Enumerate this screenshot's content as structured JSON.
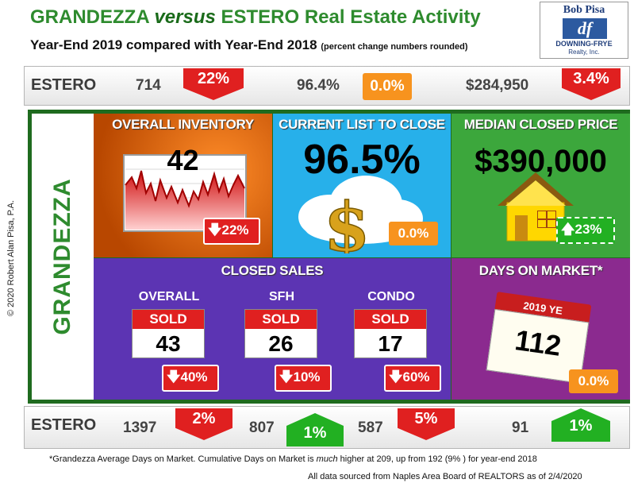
{
  "header": {
    "title_a": "GRANDEZZA",
    "title_vs": "versus",
    "title_b": "ESTERO Real Estate Activity",
    "subtitle": "Year-End 2019 compared with Year-End 2018",
    "subtitle_note": "(percent change numbers rounded)"
  },
  "logo": {
    "name": "Bob Pisa",
    "mark": "df",
    "firm": "DOWNING-FRYE",
    "suffix": "Realty, Inc."
  },
  "estero_top": {
    "label": "ESTERO",
    "inventory": "714",
    "inventory_change": "22%",
    "list_to_close": "96.4%",
    "list_to_close_change": "0.0%",
    "median_price": "$284,950",
    "median_price_change": "3.4%"
  },
  "side_label": "GRANDEZZA",
  "copyright": "© 2020 Robert Alan Pisa, P.A.",
  "tiles": {
    "inventory": {
      "heading": "OVERALL INVENTORY",
      "value": "42",
      "change": "22%",
      "direction": "down"
    },
    "list_to_close": {
      "heading": "CURRENT LIST TO CLOSE",
      "value": "96.5%",
      "change": "0.0%",
      "direction": "flat"
    },
    "median_price": {
      "heading": "MEDIAN CLOSED PRICE",
      "value": "$390,000",
      "change": "23%",
      "direction": "up"
    },
    "closed_sales": {
      "heading": "CLOSED SALES",
      "groups": [
        {
          "label": "OVERALL",
          "badge": "SOLD",
          "value": "43",
          "change": "40%",
          "direction": "down"
        },
        {
          "label": "SFH",
          "badge": "SOLD",
          "value": "26",
          "change": "10%",
          "direction": "down"
        },
        {
          "label": "CONDO",
          "badge": "SOLD",
          "value": "17",
          "change": "60%",
          "direction": "down"
        }
      ]
    },
    "days_on_market": {
      "heading": "DAYS ON MARKET*",
      "calendar_label": "2019 YE",
      "value": "112",
      "change": "0.0%",
      "direction": "flat"
    }
  },
  "estero_bottom": {
    "label": "ESTERO",
    "overall": "1397",
    "overall_change": "2%",
    "sfh": "807",
    "sfh_change": "1%",
    "condo": "587",
    "condo_change": "5%",
    "dom": "91",
    "dom_change": "1%"
  },
  "footer": {
    "note_a": "*Grandezza Average Days on Market. Cumulative Days on Market is",
    "note_em": "much",
    "note_b": "higher at 209, up from 192   (9% ) for year-end  2018",
    "source": "All data sourced from Naples Area Board of REALTORS as of 2/4/2020"
  },
  "colors": {
    "green": "#2e8b2e",
    "down_red": "#e02020",
    "up_green": "#22b022",
    "flat_orange": "#f7931e",
    "inventory_tile": "#e06a10",
    "list_tile": "#27b0ea",
    "median_tile": "#3ca73c",
    "sales_tile": "#5c34b3",
    "dom_tile": "#8b2a8f"
  },
  "icons": [
    "down-arrow-icon",
    "up-arrow-icon",
    "line-chart-icon",
    "cloud-dollar-icon",
    "house-icon",
    "calendar-icon"
  ]
}
